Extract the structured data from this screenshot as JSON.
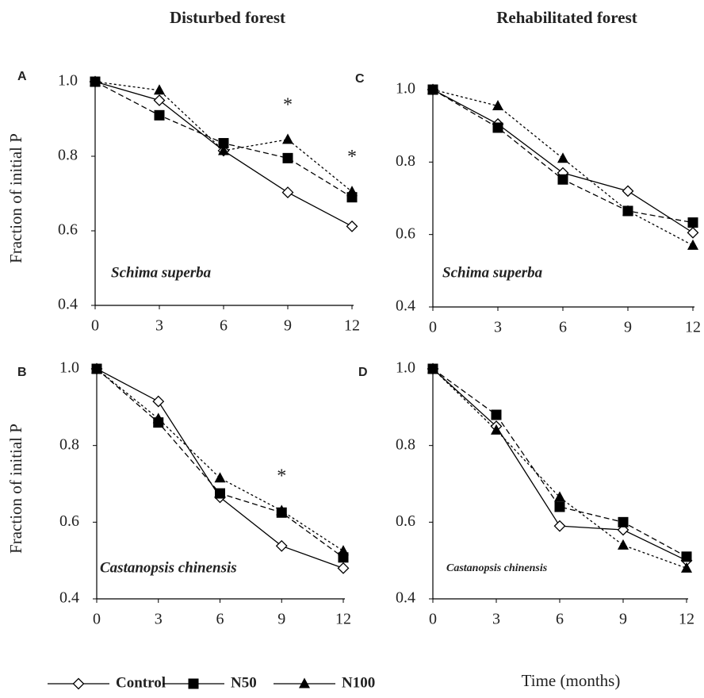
{
  "column_titles": [
    "Disturbed forest",
    "Rehabilitated forest"
  ],
  "x_label": "Time (months)",
  "chart_data": [
    {
      "type": "line",
      "panel": "A",
      "annotation": "Schima superba",
      "ylabel": "Fraction of initial P",
      "x": [
        0,
        3,
        6,
        9,
        12
      ],
      "xlim": [
        0,
        12
      ],
      "xticks": [
        0,
        3,
        6,
        9,
        12
      ],
      "ylim": [
        0.4,
        1.0
      ],
      "yticks": [
        0.4,
        0.6,
        0.8,
        {
          "value": 1.0,
          "label": "1.0"
        }
      ],
      "series": [
        {
          "name": "Control",
          "color": "#000000",
          "marker": "diamond",
          "dash": "solid",
          "values": [
            1.0,
            0.95,
            0.815,
            0.703,
            0.612
          ]
        },
        {
          "name": "N50",
          "color": "#000000",
          "marker": "square",
          "dash": "dashed",
          "values": [
            1.0,
            0.91,
            0.835,
            0.795,
            0.69
          ]
        },
        {
          "name": "N100",
          "color": "#000000",
          "marker": "triangle",
          "dash": "dotted",
          "values": [
            1.0,
            0.977,
            0.815,
            0.845,
            0.705
          ]
        }
      ],
      "annotations": [
        {
          "text": "*",
          "x": 9
        },
        {
          "text": "*",
          "x": 12
        }
      ]
    },
    {
      "type": "line",
      "panel": "B",
      "annotation": "Castanopsis chinensis",
      "ylabel": "Fraction of initial P",
      "x": [
        0,
        3,
        6,
        9,
        12
      ],
      "xlim": [
        0,
        12
      ],
      "xticks": [
        0,
        3,
        6,
        9,
        12
      ],
      "ylim": [
        0.4,
        1.0
      ],
      "yticks": [
        0.4,
        0.6,
        0.8,
        {
          "value": 1.0,
          "label": "1.0"
        }
      ],
      "series": [
        {
          "name": "Control",
          "color": "#000000",
          "marker": "diamond",
          "dash": "solid",
          "values": [
            1.0,
            0.915,
            0.665,
            0.538,
            0.48
          ]
        },
        {
          "name": "N50",
          "color": "#000000",
          "marker": "square",
          "dash": "dashed",
          "values": [
            1.0,
            0.86,
            0.675,
            0.625,
            0.508
          ]
        },
        {
          "name": "N100",
          "color": "#000000",
          "marker": "triangle",
          "dash": "dotted",
          "values": [
            1.0,
            0.87,
            0.715,
            0.63,
            0.525
          ]
        }
      ],
      "annotations": [
        {
          "text": "*",
          "x": 9
        }
      ]
    },
    {
      "type": "line",
      "panel": "C",
      "annotation": "Schima superba",
      "x": [
        0,
        3,
        6,
        9,
        12
      ],
      "xlim": [
        0,
        12
      ],
      "xticks": [
        0,
        3,
        6,
        9,
        12
      ],
      "ylim": [
        0.4,
        1.0
      ],
      "yticks": [
        0.4,
        0.6,
        0.8,
        {
          "value": 1.0,
          "label": "1.0"
        }
      ],
      "series": [
        {
          "name": "Control",
          "color": "#000000",
          "marker": "diamond",
          "dash": "solid",
          "values": [
            1.0,
            0.905,
            0.77,
            0.72,
            0.605
          ]
        },
        {
          "name": "N50",
          "color": "#000000",
          "marker": "square",
          "dash": "dashed",
          "values": [
            1.0,
            0.895,
            0.752,
            0.665,
            0.633
          ]
        },
        {
          "name": "N100",
          "color": "#000000",
          "marker": "triangle",
          "dash": "dotted",
          "values": [
            1.0,
            0.955,
            0.81,
            0.665,
            0.57
          ]
        }
      ]
    },
    {
      "type": "line",
      "panel": "D",
      "annotation": "Castanopsis chinensis",
      "x": [
        0,
        3,
        6,
        9,
        12
      ],
      "xlim": [
        0,
        12
      ],
      "xticks": [
        0,
        3,
        6,
        9,
        12
      ],
      "ylim": [
        0.4,
        1.0
      ],
      "yticks": [
        0.4,
        0.6,
        0.8,
        {
          "value": 1.0,
          "label": "1.0"
        }
      ],
      "series": [
        {
          "name": "Control",
          "color": "#000000",
          "marker": "diamond",
          "dash": "solid",
          "values": [
            1.0,
            0.85,
            0.59,
            0.58,
            0.5
          ]
        },
        {
          "name": "N50",
          "color": "#000000",
          "marker": "square",
          "dash": "dashed",
          "values": [
            1.0,
            0.88,
            0.64,
            0.6,
            0.51
          ]
        },
        {
          "name": "N100",
          "color": "#000000",
          "marker": "triangle",
          "dash": "dotted",
          "values": [
            1.0,
            0.84,
            0.665,
            0.54,
            0.48
          ]
        }
      ]
    }
  ]
}
